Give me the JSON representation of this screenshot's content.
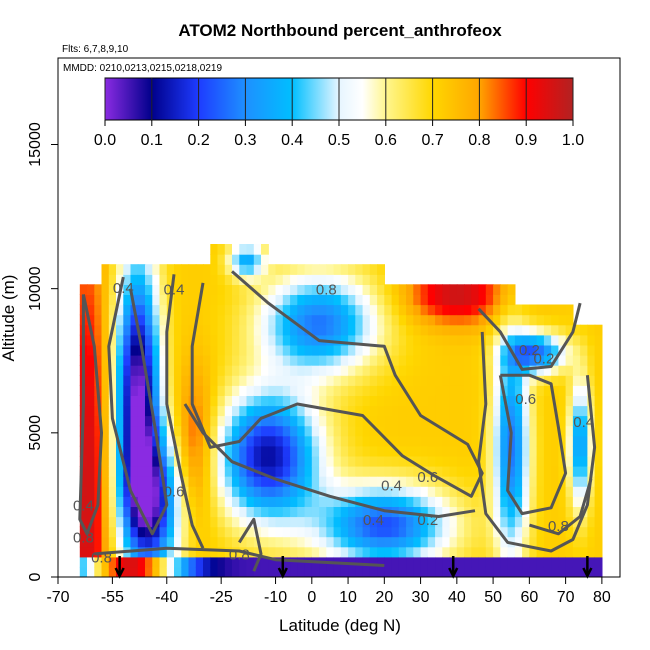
{
  "chart_data": {
    "type": "heatmap",
    "title": "ATOM2 Northbound percent_anthrofeox",
    "flights_label": "Flts: 6,7,8,9,10",
    "dates_label": "MMDD: 0210,0213,0215,0218,0219",
    "xlabel": "Latitude (deg N)",
    "ylabel": "Altitude (m)",
    "xlim": [
      -70,
      85
    ],
    "ylim": [
      0,
      18000
    ],
    "xticks": [
      "-70",
      "-55",
      "-40",
      "-25",
      "-10",
      "0",
      "10",
      "20",
      "30",
      "40",
      "50",
      "60",
      "70",
      "80"
    ],
    "yticks": [
      "0",
      "5000",
      "10000",
      "15000"
    ],
    "colorbar": {
      "ticks": [
        "0.0",
        "0.1",
        "0.2",
        "0.3",
        "0.4",
        "0.5",
        "0.6",
        "0.7",
        "0.8",
        "0.9",
        "1.0"
      ],
      "range": [
        0,
        1
      ],
      "colors": [
        "#8a2be2",
        "#00008b",
        "#1e90ff",
        "#00bfff",
        "#87cefa",
        "#ffffff",
        "#fff68f",
        "#ffd700",
        "#ffa500",
        "#ff0000",
        "#b22222"
      ]
    },
    "contour_labels": [
      "0.4",
      "0.4",
      "0.6",
      "0.8",
      "0.8",
      "0.4",
      "0.8",
      "0.4",
      "0.2",
      "0.4",
      "0.6",
      "0.8",
      "0.2",
      "0.6",
      "0.2",
      "0.4",
      "0.8"
    ],
    "profile_markers_lat": [
      -53,
      -8,
      39,
      76
    ],
    "grid": false
  }
}
